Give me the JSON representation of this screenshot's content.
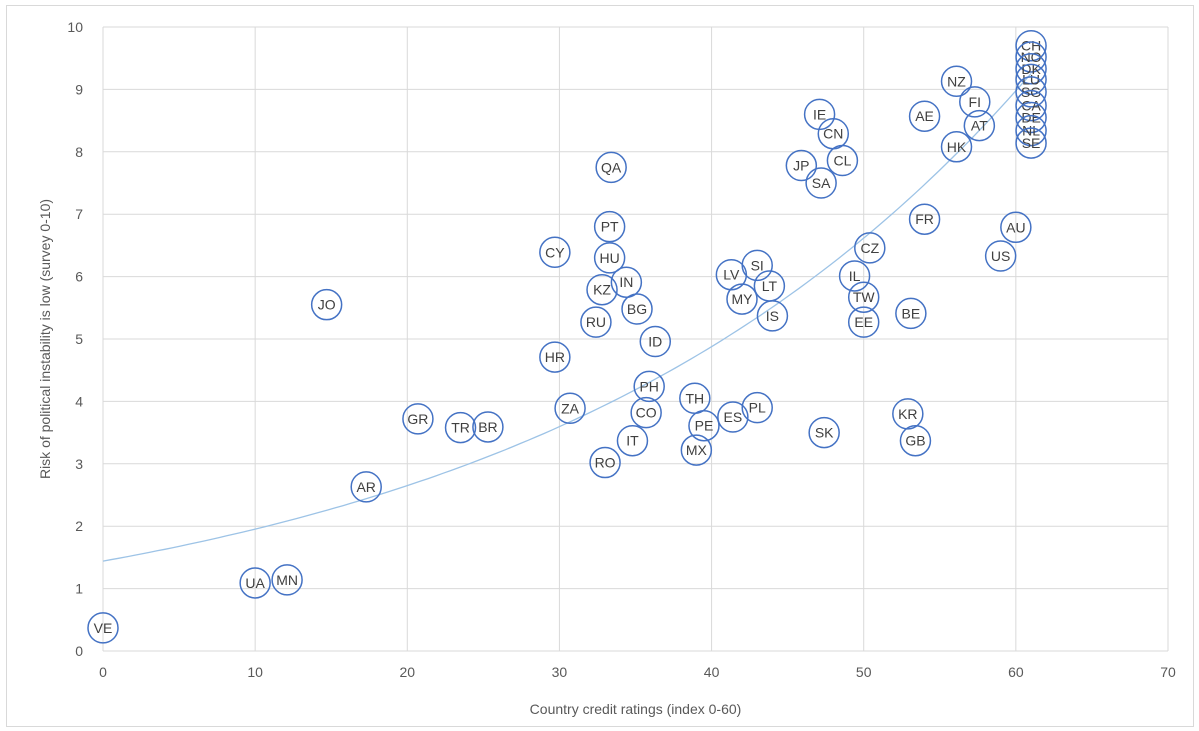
{
  "chart_data": {
    "type": "scatter",
    "title": "",
    "xlabel": "Country credit ratings (index 0-60)",
    "ylabel": "Risk of political instability is low (survey 0-10)",
    "xlim": [
      0,
      70
    ],
    "ylim": [
      0,
      10
    ],
    "xticks": [
      "0",
      "10",
      "20",
      "30",
      "40",
      "50",
      "60",
      "70"
    ],
    "yticks": [
      "0",
      "1",
      "2",
      "3",
      "4",
      "5",
      "6",
      "7",
      "8",
      "9",
      "10"
    ],
    "grid": true,
    "marker_color": "#4472c4",
    "trendline": {
      "type": "exponential",
      "a": 1.44,
      "b": 0.0305,
      "color": "#9dc3e6"
    },
    "points": [
      {
        "label": "VE",
        "x": 0.0,
        "y": 0.37
      },
      {
        "label": "UA",
        "x": 10.0,
        "y": 1.09
      },
      {
        "label": "MN",
        "x": 12.1,
        "y": 1.14
      },
      {
        "label": "JO",
        "x": 14.7,
        "y": 5.55
      },
      {
        "label": "AR",
        "x": 17.3,
        "y": 2.63
      },
      {
        "label": "GR",
        "x": 20.7,
        "y": 3.72
      },
      {
        "label": "TR",
        "x": 23.5,
        "y": 3.58
      },
      {
        "label": "BR",
        "x": 25.3,
        "y": 3.59
      },
      {
        "label": "CY",
        "x": 29.7,
        "y": 6.39
      },
      {
        "label": "HR",
        "x": 29.7,
        "y": 4.71
      },
      {
        "label": "ZA",
        "x": 30.7,
        "y": 3.89
      },
      {
        "label": "RU",
        "x": 32.4,
        "y": 5.27
      },
      {
        "label": "KZ",
        "x": 32.8,
        "y": 5.79
      },
      {
        "label": "RO",
        "x": 33.0,
        "y": 3.02
      },
      {
        "label": "HU",
        "x": 33.3,
        "y": 6.3
      },
      {
        "label": "PT",
        "x": 33.3,
        "y": 6.8
      },
      {
        "label": "QA",
        "x": 33.4,
        "y": 7.75
      },
      {
        "label": "IN",
        "x": 34.4,
        "y": 5.91
      },
      {
        "label": "IT",
        "x": 34.8,
        "y": 3.37
      },
      {
        "label": "BG",
        "x": 35.1,
        "y": 5.48
      },
      {
        "label": "CO",
        "x": 35.7,
        "y": 3.82
      },
      {
        "label": "PH",
        "x": 35.9,
        "y": 4.24
      },
      {
        "label": "ID",
        "x": 36.3,
        "y": 4.96
      },
      {
        "label": "TH",
        "x": 38.9,
        "y": 4.05
      },
      {
        "label": "MX",
        "x": 39.0,
        "y": 3.22
      },
      {
        "label": "PE",
        "x": 39.5,
        "y": 3.61
      },
      {
        "label": "LV",
        "x": 41.3,
        "y": 6.03
      },
      {
        "label": "ES",
        "x": 41.4,
        "y": 3.75
      },
      {
        "label": "MY",
        "x": 42.0,
        "y": 5.64
      },
      {
        "label": "SI",
        "x": 43.0,
        "y": 6.18
      },
      {
        "label": "PL",
        "x": 43.0,
        "y": 3.9
      },
      {
        "label": "LT",
        "x": 43.8,
        "y": 5.85
      },
      {
        "label": "IS",
        "x": 44.0,
        "y": 5.37
      },
      {
        "label": "JP",
        "x": 45.9,
        "y": 7.78
      },
      {
        "label": "IE",
        "x": 47.1,
        "y": 8.6
      },
      {
        "label": "SA",
        "x": 47.2,
        "y": 7.5
      },
      {
        "label": "SK",
        "x": 47.4,
        "y": 3.5
      },
      {
        "label": "CN",
        "x": 48.0,
        "y": 8.29
      },
      {
        "label": "CL",
        "x": 48.6,
        "y": 7.86
      },
      {
        "label": "IL",
        "x": 49.4,
        "y": 6.01
      },
      {
        "label": "TW",
        "x": 50.0,
        "y": 5.67
      },
      {
        "label": "EE",
        "x": 50.0,
        "y": 5.27
      },
      {
        "label": "CZ",
        "x": 50.4,
        "y": 6.46
      },
      {
        "label": "KR",
        "x": 52.9,
        "y": 3.8
      },
      {
        "label": "BE",
        "x": 53.1,
        "y": 5.41
      },
      {
        "label": "GB",
        "x": 53.4,
        "y": 3.37
      },
      {
        "label": "AE",
        "x": 54.0,
        "y": 8.57
      },
      {
        "label": "FR",
        "x": 54.0,
        "y": 6.92
      },
      {
        "label": "NZ",
        "x": 56.1,
        "y": 9.13
      },
      {
        "label": "HK",
        "x": 56.1,
        "y": 8.08
      },
      {
        "label": "FI",
        "x": 57.3,
        "y": 8.8
      },
      {
        "label": "AT",
        "x": 57.6,
        "y": 8.42
      },
      {
        "label": "US",
        "x": 59.0,
        "y": 6.33
      },
      {
        "label": "AU",
        "x": 60.0,
        "y": 6.79
      },
      {
        "label": "CH",
        "x": 61.0,
        "y": 9.7
      },
      {
        "label": "NO",
        "x": 61.0,
        "y": 9.52
      },
      {
        "label": "DK",
        "x": 61.0,
        "y": 9.33
      },
      {
        "label": "LU",
        "x": 61.0,
        "y": 9.16
      },
      {
        "label": "SG",
        "x": 61.0,
        "y": 8.96
      },
      {
        "label": "CA",
        "x": 61.0,
        "y": 8.74
      },
      {
        "label": "DE",
        "x": 61.0,
        "y": 8.55
      },
      {
        "label": "NL",
        "x": 61.0,
        "y": 8.34
      },
      {
        "label": "SE",
        "x": 61.0,
        "y": 8.14
      }
    ]
  }
}
